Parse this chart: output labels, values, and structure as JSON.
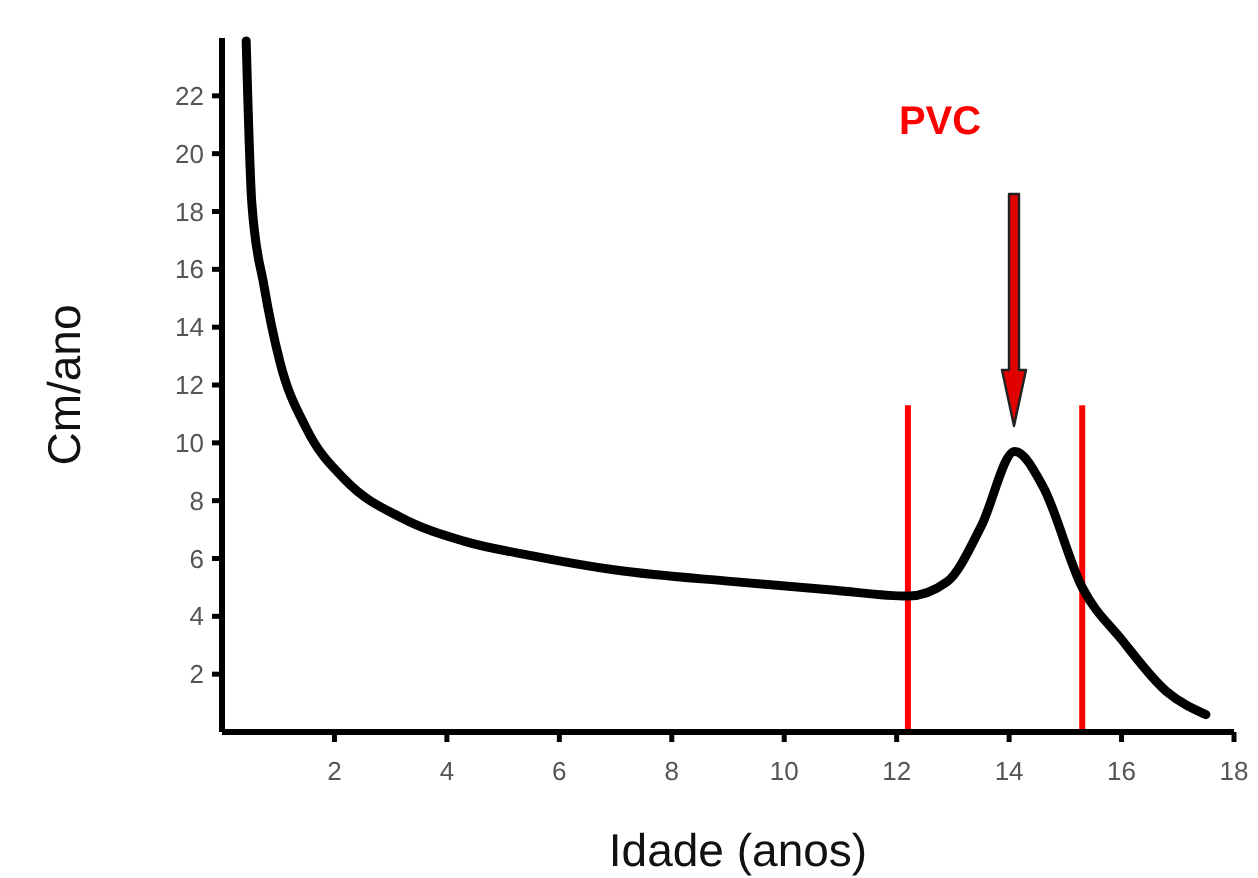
{
  "chart_data": {
    "type": "line",
    "xlabel": "Idade (anos)",
    "ylabel": "Cm/ano",
    "x": [
      0.43,
      0.53,
      0.75,
      1.03,
      1.5,
      2.2,
      3.2,
      4.3,
      5.5,
      7.0,
      9.1,
      10.9,
      12.2,
      12.9,
      13.5,
      14.1,
      14.6,
      15.3,
      16.0,
      16.8,
      17.5
    ],
    "series": [
      {
        "color": "#000000",
        "values": [
          23.9,
          18.3,
          15.4,
          12.8,
          10.5,
          8.7,
          7.4,
          6.6,
          6.1,
          5.6,
          5.2,
          4.9,
          4.7,
          5.2,
          7.1,
          9.7,
          8.5,
          5.0,
          3.2,
          1.4,
          0.6
        ]
      }
    ],
    "xlim": [
      0,
      18
    ],
    "xticks": [
      2,
      4,
      6,
      8,
      10,
      12,
      14,
      16,
      18
    ],
    "ylim": [
      0,
      24
    ],
    "yticks": [
      2,
      4,
      6,
      8,
      10,
      12,
      14,
      16,
      18,
      20,
      22
    ],
    "ref_lines": [
      {
        "axis": "x",
        "value": 12.2,
        "color": "#ff0000"
      },
      {
        "axis": "x",
        "value": 15.3,
        "color": "#ff0000"
      }
    ],
    "annotations": [
      "PVC"
    ],
    "grid": false,
    "marker": "none",
    "line_style": "solid"
  }
}
